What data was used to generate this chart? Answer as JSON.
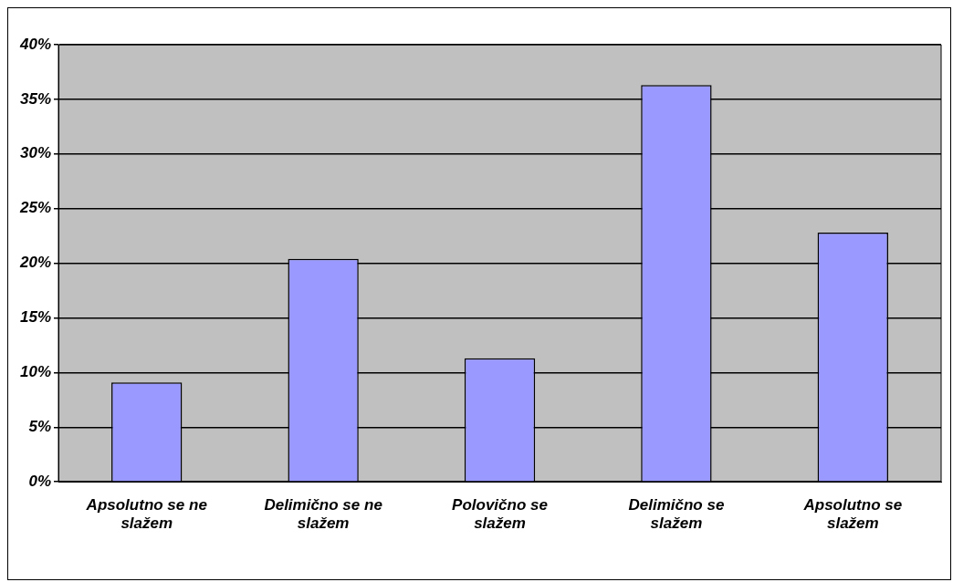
{
  "chart_data": {
    "type": "bar",
    "categories": [
      "Apsolutno se ne slažem",
      "Delimično se ne slažem",
      "Polovično se slažem",
      "Delimično se slažem",
      "Apsolutno se slažem"
    ],
    "values": [
      9.1,
      20.4,
      11.3,
      36.3,
      22.8
    ],
    "color": "#9999ff",
    "ylim": [
      0,
      40
    ],
    "yticks": [
      {
        "value": 0,
        "label": "0%"
      },
      {
        "value": 5,
        "label": "5%"
      },
      {
        "value": 10,
        "label": "10%"
      },
      {
        "value": 15,
        "label": "15%"
      },
      {
        "value": 20,
        "label": "20%"
      },
      {
        "value": 25,
        "label": "25%"
      },
      {
        "value": 30,
        "label": "30%"
      },
      {
        "value": 35,
        "label": "35%"
      },
      {
        "value": 40,
        "label": "40%"
      }
    ],
    "grid": "y",
    "legend": false
  }
}
